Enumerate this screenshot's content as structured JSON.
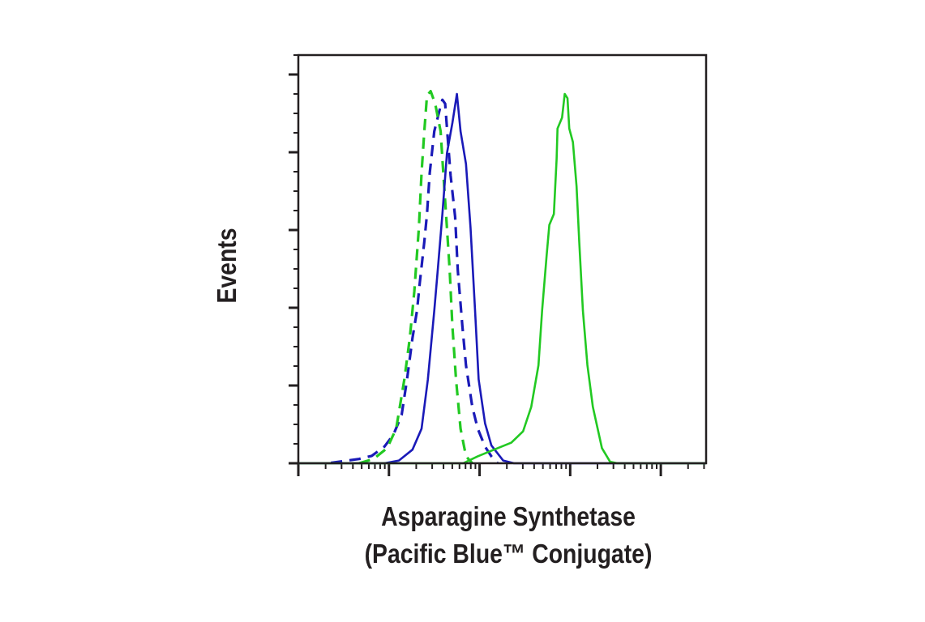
{
  "chart_data": {
    "type": "line",
    "title": "",
    "xlabel_line1": "Asparagine Synthetase",
    "xlabel_line2": "(Pacific Blue™ Conjugate)",
    "ylabel": "Events",
    "x_scale": "log",
    "xlim": [
      0,
      4.5
    ],
    "x_major_ticks": [
      0,
      1,
      2,
      3,
      4
    ],
    "ylim": [
      0,
      105
    ],
    "y_major_ticks": [
      0,
      20,
      40,
      60,
      80,
      100
    ],
    "y_minor_step": 5,
    "tick_labels_shown": false,
    "grid": false,
    "legend": "none",
    "series": [
      {
        "color": "#1a1ab8",
        "style": "dashed",
        "points": [
          [
            0.36,
            0.1
          ],
          [
            0.67,
            1.1
          ],
          [
            0.81,
            1.9
          ],
          [
            0.95,
            4.3
          ],
          [
            1.05,
            7.4
          ],
          [
            1.14,
            12.4
          ],
          [
            1.2,
            21.6
          ],
          [
            1.26,
            32.2
          ],
          [
            1.31,
            39.3
          ],
          [
            1.34,
            46.4
          ],
          [
            1.39,
            57
          ],
          [
            1.42,
            64.1
          ],
          [
            1.45,
            74.7
          ],
          [
            1.5,
            85.4
          ],
          [
            1.56,
            91
          ],
          [
            1.59,
            93.5
          ],
          [
            1.62,
            92.5
          ],
          [
            1.65,
            83.3
          ],
          [
            1.68,
            74.1
          ],
          [
            1.73,
            63.4
          ],
          [
            1.76,
            49.6
          ],
          [
            1.81,
            35.4
          ],
          [
            1.85,
            25.2
          ],
          [
            1.92,
            14.5
          ],
          [
            1.98,
            8.9
          ],
          [
            2.06,
            4.3
          ],
          [
            2.13,
            1.8
          ],
          [
            2.2,
            0
          ]
        ]
      },
      {
        "color": "#22c922",
        "style": "dashed",
        "points": [
          [
            0.67,
            0
          ],
          [
            0.83,
            1.1
          ],
          [
            0.98,
            3.9
          ],
          [
            1.08,
            8.9
          ],
          [
            1.17,
            21.6
          ],
          [
            1.23,
            32.2
          ],
          [
            1.28,
            44.3
          ],
          [
            1.33,
            60.6
          ],
          [
            1.36,
            74.7
          ],
          [
            1.39,
            85.4
          ],
          [
            1.42,
            94.6
          ],
          [
            1.46,
            95.7
          ],
          [
            1.51,
            92.5
          ],
          [
            1.57,
            85.4
          ],
          [
            1.6,
            74.7
          ],
          [
            1.64,
            60.6
          ],
          [
            1.67,
            49.6
          ],
          [
            1.7,
            35.4
          ],
          [
            1.74,
            21.6
          ],
          [
            1.79,
            8.9
          ],
          [
            1.85,
            1.8
          ],
          [
            1.92,
            0
          ]
        ]
      },
      {
        "color": "#1a1ab8",
        "style": "solid",
        "points": [
          [
            0,
            0
          ],
          [
            0.95,
            0
          ],
          [
            1.11,
            0.7
          ],
          [
            1.26,
            3.5
          ],
          [
            1.36,
            8.9
          ],
          [
            1.43,
            21.6
          ],
          [
            1.5,
            39.3
          ],
          [
            1.54,
            50
          ],
          [
            1.59,
            64.1
          ],
          [
            1.64,
            79.7
          ],
          [
            1.7,
            87.5
          ],
          [
            1.75,
            95
          ],
          [
            1.79,
            85.4
          ],
          [
            1.85,
            77
          ],
          [
            1.9,
            60.6
          ],
          [
            1.95,
            39.3
          ],
          [
            1.99,
            21.6
          ],
          [
            2.06,
            10.3
          ],
          [
            2.13,
            4.6
          ],
          [
            2.26,
            0.7
          ],
          [
            2.38,
            0
          ],
          [
            4.5,
            0
          ]
        ]
      },
      {
        "color": "#22c922",
        "style": "solid",
        "points": [
          [
            0,
            0
          ],
          [
            1.82,
            0
          ],
          [
            1.98,
            1.8
          ],
          [
            2.16,
            3.5
          ],
          [
            2.35,
            5.3
          ],
          [
            2.48,
            8.2
          ],
          [
            2.57,
            14.5
          ],
          [
            2.65,
            25.2
          ],
          [
            2.69,
            39.3
          ],
          [
            2.74,
            53.5
          ],
          [
            2.77,
            61.3
          ],
          [
            2.82,
            64.1
          ],
          [
            2.85,
            78.3
          ],
          [
            2.86,
            86.1
          ],
          [
            2.91,
            88.9
          ],
          [
            2.94,
            95
          ],
          [
            2.97,
            93.9
          ],
          [
            2.99,
            86.1
          ],
          [
            3.03,
            82.6
          ],
          [
            3.07,
            71.2
          ],
          [
            3.1,
            57
          ],
          [
            3.14,
            39.3
          ],
          [
            3.19,
            25.2
          ],
          [
            3.25,
            14.5
          ],
          [
            3.35,
            3.9
          ],
          [
            3.44,
            0.4
          ],
          [
            3.52,
            0
          ],
          [
            4.5,
            0
          ]
        ]
      }
    ]
  }
}
